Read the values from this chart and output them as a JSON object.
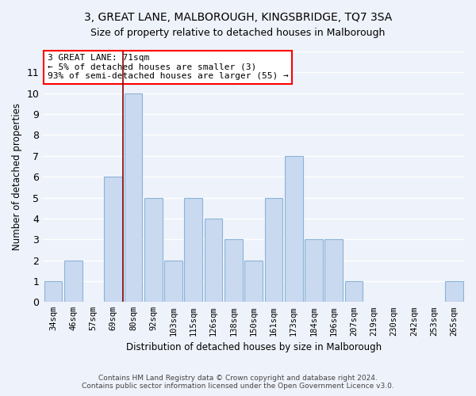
{
  "title_line1": "3, GREAT LANE, MALBOROUGH, KINGSBRIDGE, TQ7 3SA",
  "title_line2": "Size of property relative to detached houses in Malborough",
  "xlabel": "Distribution of detached houses by size in Malborough",
  "ylabel": "Number of detached properties",
  "bar_labels": [
    "34sqm",
    "46sqm",
    "57sqm",
    "69sqm",
    "80sqm",
    "92sqm",
    "103sqm",
    "115sqm",
    "126sqm",
    "138sqm",
    "150sqm",
    "161sqm",
    "173sqm",
    "184sqm",
    "196sqm",
    "207sqm",
    "219sqm",
    "230sqm",
    "242sqm",
    "253sqm",
    "265sqm"
  ],
  "bar_values": [
    1,
    2,
    0,
    6,
    10,
    5,
    2,
    5,
    4,
    3,
    2,
    5,
    7,
    3,
    3,
    1,
    0,
    0,
    0,
    0,
    1
  ],
  "bar_color": "#c9d9f0",
  "bar_edge_color": "#8ab4d8",
  "vline_index": 3.5,
  "vline_color": "#8b0000",
  "annotation_title": "3 GREAT LANE: 71sqm",
  "annotation_line1": "← 5% of detached houses are smaller (3)",
  "annotation_line2": "93% of semi-detached houses are larger (55) →",
  "annotation_box_color": "white",
  "annotation_box_edge_color": "red",
  "ylim": [
    0,
    12
  ],
  "yticks": [
    0,
    1,
    2,
    3,
    4,
    5,
    6,
    7,
    8,
    9,
    10,
    11,
    12
  ],
  "footnote1": "Contains HM Land Registry data © Crown copyright and database right 2024.",
  "footnote2": "Contains public sector information licensed under the Open Government Licence v3.0.",
  "bg_color": "#eef2fa",
  "grid_color": "white",
  "title1_fontsize": 10,
  "title2_fontsize": 9
}
